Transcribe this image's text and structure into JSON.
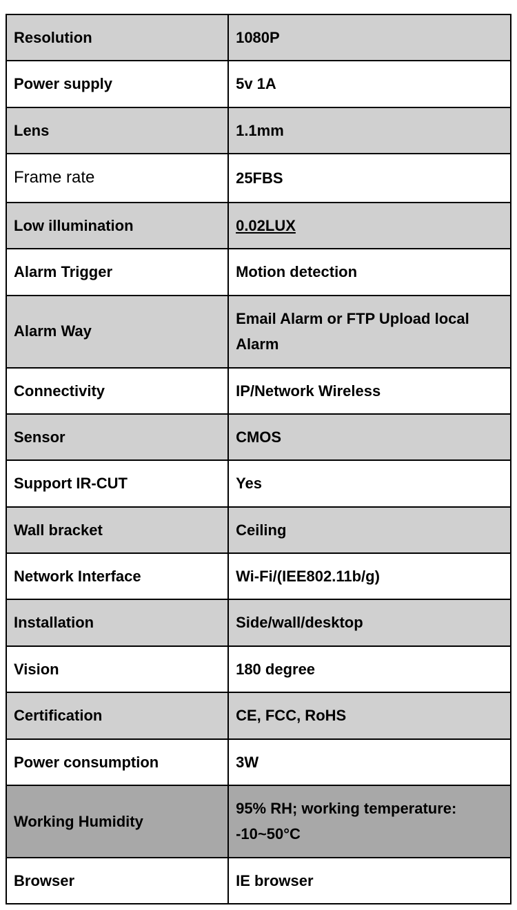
{
  "spec_table": {
    "type": "table",
    "border_color": "#000000",
    "border_width": 2,
    "colors": {
      "plain_bg": "#ffffff",
      "shaded_bg": "#d0d0d0",
      "dark_bg": "#a8a8a8",
      "text": "#000000"
    },
    "label_fontsize": 22,
    "value_fontsize": 22,
    "font_weight": "bold",
    "column_widths_pct": [
      44,
      56
    ],
    "rows": [
      {
        "label": "Resolution",
        "value": "1080P",
        "shade": "shaded"
      },
      {
        "label": "Power    supply",
        "value": "5v 1A",
        "shade": "plain"
      },
      {
        "label": "Lens",
        "value": "1.1mm",
        "shade": "shaded"
      },
      {
        "label": "Frame rate",
        "value": "25FBS",
        "shade": "plain",
        "label_style": "normal"
      },
      {
        "label": "Low illumination",
        "value": "0.02LUX",
        "shade": "shaded",
        "value_style": "underline"
      },
      {
        "label": "Alarm Trigger",
        "value": "Motion detection",
        "shade": "plain"
      },
      {
        "label": "Alarm Way",
        "value": "Email Alarm or FTP Upload local Alarm",
        "shade": "shaded"
      },
      {
        "label": "Connectivity",
        "value": "IP/Network Wireless",
        "shade": "plain"
      },
      {
        "label": "Sensor",
        "value": "CMOS",
        "shade": "shaded"
      },
      {
        "label": "Support IR-CUT",
        "value": "Yes",
        "shade": "plain"
      },
      {
        "label": "Wall bracket",
        "value": "Ceiling",
        "shade": "shaded"
      },
      {
        "label": "Network Interface",
        "value": "Wi-Fi/(IEE802.11b/g)",
        "shade": "plain"
      },
      {
        "label": "Installation",
        "value": "Side/wall/desktop",
        "shade": "shaded"
      },
      {
        "label": "Vision",
        "value": "180 degree",
        "shade": "plain"
      },
      {
        "label": "Certification",
        "value": " CE, FCC, RoHS",
        "shade": "shaded"
      },
      {
        "label": "Power consumption",
        "value": "3W",
        "shade": "plain"
      },
      {
        "label": "Working Humidity",
        "value": "95% RH; working temperature: -10~50°C",
        "shade": "dark"
      },
      {
        "label": "Browser",
        "value": "IE browser",
        "shade": "plain"
      }
    ]
  }
}
